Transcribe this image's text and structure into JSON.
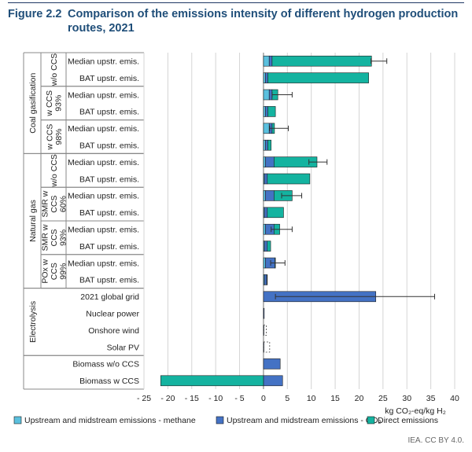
{
  "figure": {
    "number": "Figure 2.2",
    "title": "Comparison of the emissions intensity of different hydrogen production routes, 2021",
    "credit": "IEA. CC BY 4.0."
  },
  "chart_data": {
    "type": "bar",
    "orientation": "horizontal",
    "stacked": true,
    "xlabel": "kg CO₂-eq/kg H₂",
    "xlim": [
      -25,
      40
    ],
    "xticks": [
      "- 25",
      "- 20",
      "- 15",
      "- 10",
      "- 5",
      "0",
      "5",
      "10",
      "15",
      "20",
      "25",
      "30",
      "35",
      "40"
    ],
    "grid": "vertical",
    "legend_position": "bottom",
    "groups": [
      {
        "label": "Coal gasification",
        "start": 0,
        "end": 5
      },
      {
        "label": "Natural gas",
        "start": 6,
        "end": 13
      },
      {
        "label": "Electrolysis",
        "start": 14,
        "end": 17
      },
      {
        "label": "",
        "start": 18,
        "end": 19
      }
    ],
    "subgroups": [
      {
        "lines": [
          "w/o CCS"
        ],
        "start": 0,
        "end": 1
      },
      {
        "lines": [
          "w CCS",
          "93%"
        ],
        "start": 2,
        "end": 3
      },
      {
        "lines": [
          "w CCS",
          "98%"
        ],
        "start": 4,
        "end": 5
      },
      {
        "lines": [
          "w/o CCS"
        ],
        "start": 6,
        "end": 7
      },
      {
        "lines": [
          "SMR w",
          "CCS",
          "60%"
        ],
        "start": 8,
        "end": 9
      },
      {
        "lines": [
          "SMR w",
          "CCS",
          "93%"
        ],
        "start": 10,
        "end": 11
      },
      {
        "lines": [
          "POx w",
          "CCS",
          "99%"
        ],
        "start": 12,
        "end": 13
      }
    ],
    "categories": [
      "Median upstr. emis.",
      "BAT upstr. emis.",
      "Median upstr. emis.",
      "BAT upstr. emis.",
      "Median upstr. emis.",
      "BAT upstr. emis.",
      "Median upstr. emis.",
      "BAT upstr. emis.",
      "Median upstr. emis.",
      "BAT upstr. emis.",
      "Median upstr. emis.",
      "BAT upstr. emis.",
      "Median upstr. emis.",
      "BAT upstr. emis.",
      "2021 global grid",
      "Nuclear power",
      "Onshore wind",
      "Solar PV",
      "Biomass w/o CCS",
      "Biomass w CCS"
    ],
    "series": [
      {
        "name": "Upstream and midstream emissions - methane",
        "color": "#5bc0de",
        "values": [
          1.2,
          0.4,
          1.2,
          0.4,
          1.2,
          0.4,
          0.4,
          0.2,
          0.4,
          0.2,
          0.4,
          0.2,
          0.4,
          0.2,
          0,
          0,
          0,
          0,
          0,
          0
        ]
      },
      {
        "name": "Upstream and midstream emissions - CO₂",
        "color": "#4472c4",
        "values": [
          0.6,
          0.5,
          0.6,
          0.5,
          0.6,
          0.5,
          1.8,
          0.6,
          1.8,
          0.6,
          1.8,
          0.6,
          2.0,
          0.5,
          23.5,
          0.15,
          0.1,
          0.1,
          3.5,
          4.0
        ]
      },
      {
        "name": "Direct emissions",
        "color": "#14b3a0",
        "values": [
          20.8,
          21.1,
          1.2,
          1.6,
          0.5,
          0.7,
          9.0,
          8.9,
          3.8,
          3.4,
          1.2,
          0.7,
          0.1,
          0.1,
          0,
          0,
          0,
          0,
          0,
          -21.5
        ]
      }
    ],
    "error_bars": [
      {
        "index": 0,
        "low": 22.5,
        "high": 25.8
      },
      {
        "index": 2,
        "low": 1.8,
        "high": 6.0
      },
      {
        "index": 4,
        "low": 1.3,
        "high": 5.2
      },
      {
        "index": 6,
        "low": 9.5,
        "high": 13.3
      },
      {
        "index": 8,
        "low": 3.8,
        "high": 8.0
      },
      {
        "index": 10,
        "low": 1.6,
        "high": 6.0
      },
      {
        "index": 12,
        "low": 1.5,
        "high": 4.5
      },
      {
        "index": 14,
        "low": 2.5,
        "high": 35.8
      }
    ],
    "dashed_bars": [
      {
        "index": 16,
        "value": 0.6
      },
      {
        "index": 17,
        "value": 1.3
      }
    ]
  }
}
